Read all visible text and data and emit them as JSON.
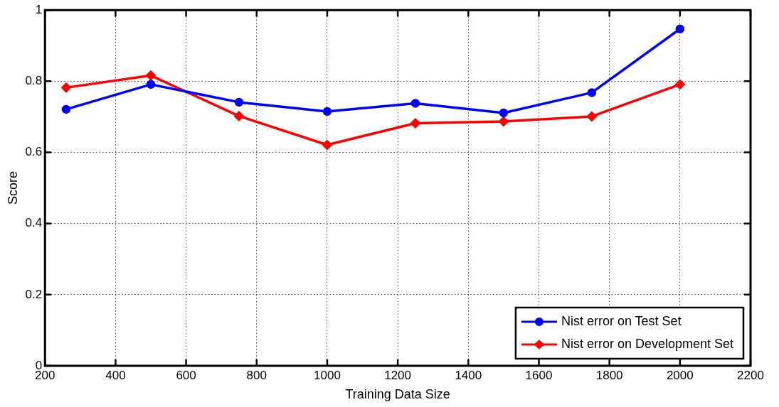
{
  "chart_data": {
    "type": "line",
    "xlabel": "Training Data Size",
    "ylabel": "Score",
    "xlim": [
      200,
      2200
    ],
    "xticks": [
      200,
      400,
      600,
      800,
      1000,
      1200,
      1400,
      1600,
      1800,
      2000,
      2200
    ],
    "ylim": [
      0,
      1
    ],
    "yticks": [
      0,
      0.2,
      0.4,
      0.6,
      0.8,
      1
    ],
    "grid": true,
    "legend": "bottom right",
    "line_style": "solid",
    "series": [
      {
        "name": "Nist error on Test Set",
        "color": "#0000ff",
        "marker": "circle",
        "x": [
          260,
          500,
          750,
          1000,
          1250,
          1500,
          1750,
          2000
        ],
        "values": [
          0.721,
          0.791,
          0.741,
          0.715,
          0.738,
          0.711,
          0.768,
          0.947
        ]
      },
      {
        "name": "Nist error on Development Set",
        "color": "#ff0000",
        "marker": "diamond",
        "x": [
          260,
          500,
          750,
          1000,
          1250,
          1500,
          1750,
          2000
        ],
        "values": [
          0.782,
          0.816,
          0.702,
          0.621,
          0.682,
          0.687,
          0.701,
          0.791
        ]
      }
    ]
  }
}
